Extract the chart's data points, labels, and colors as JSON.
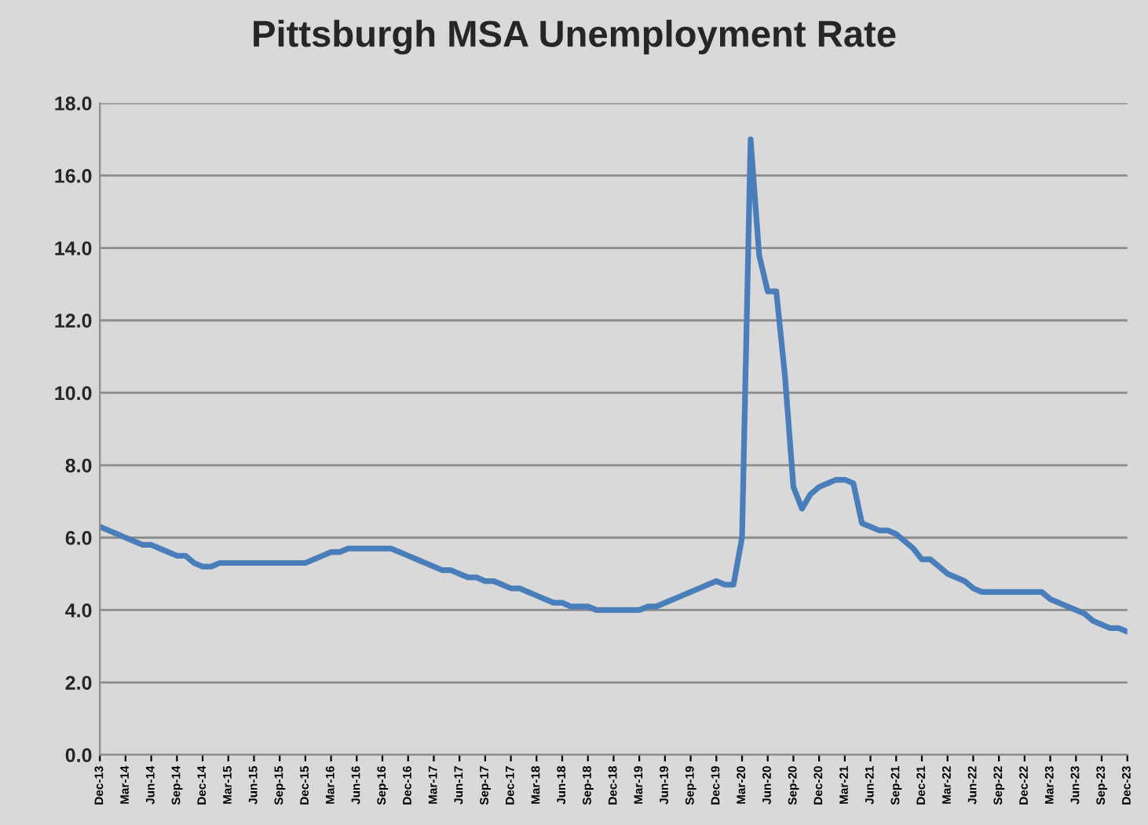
{
  "chart_data": {
    "type": "line",
    "title": "Pittsburgh MSA Unemployment Rate",
    "categories": [
      "Dec-13",
      null,
      null,
      "Mar-14",
      null,
      null,
      "Jun-14",
      null,
      null,
      "Sep-14",
      null,
      null,
      "Dec-14",
      null,
      null,
      "Mar-15",
      null,
      null,
      "Jun-15",
      null,
      null,
      "Sep-15",
      null,
      null,
      "Dec-15",
      null,
      null,
      "Mar-16",
      null,
      null,
      "Jun-16",
      null,
      null,
      "Sep-16",
      null,
      null,
      "Dec-16",
      null,
      null,
      "Mar-17",
      null,
      null,
      "Jun-17",
      null,
      null,
      "Sep-17",
      null,
      null,
      "Dec-17",
      null,
      null,
      "Mar-18",
      null,
      null,
      "Jun-18",
      null,
      null,
      "Sep-18",
      null,
      null,
      "Dec-18",
      null,
      null,
      "Mar-19",
      null,
      null,
      "Jun-19",
      null,
      null,
      "Sep-19",
      null,
      null,
      "Dec-19",
      null,
      null,
      "Mar-20",
      null,
      null,
      "Jun-20",
      null,
      null,
      "Sep-20",
      null,
      null,
      "Dec-20",
      null,
      null,
      "Mar-21",
      null,
      null,
      "Jun-21",
      null,
      null,
      "Sep-21",
      null,
      null,
      "Dec-21",
      null,
      null,
      "Mar-22",
      null,
      null,
      "Jun-22",
      null,
      null,
      "Sep-22",
      null,
      null,
      "Dec-22",
      null,
      null,
      "Mar-23",
      null,
      null,
      "Jun-23",
      null,
      null,
      "Sep-23",
      null,
      null,
      "Dec-23"
    ],
    "series": [
      {
        "color": "#4a7ebb",
        "values": [
          6.3,
          6.2,
          6.1,
          6.0,
          5.9,
          5.8,
          5.8,
          5.7,
          5.6,
          5.5,
          5.5,
          5.3,
          5.2,
          5.2,
          5.3,
          5.3,
          5.3,
          5.3,
          5.3,
          5.3,
          5.3,
          5.3,
          5.3,
          5.3,
          5.3,
          5.4,
          5.5,
          5.6,
          5.6,
          5.7,
          5.7,
          5.7,
          5.7,
          5.7,
          5.7,
          5.6,
          5.5,
          5.4,
          5.3,
          5.2,
          5.1,
          5.1,
          5.0,
          4.9,
          4.9,
          4.8,
          4.8,
          4.7,
          4.6,
          4.6,
          4.5,
          4.4,
          4.3,
          4.2,
          4.2,
          4.1,
          4.1,
          4.1,
          4.0,
          4.0,
          4.0,
          4.0,
          4.0,
          4.0,
          4.1,
          4.1,
          4.2,
          4.3,
          4.4,
          4.5,
          4.6,
          4.7,
          4.8,
          4.7,
          4.7,
          6.0,
          17.0,
          13.8,
          12.8,
          12.8,
          10.5,
          7.4,
          6.8,
          7.2,
          7.4,
          7.5,
          7.6,
          7.6,
          7.5,
          6.4,
          6.3,
          6.2,
          6.2,
          6.1,
          5.9,
          5.7,
          5.4,
          5.4,
          5.2,
          5.0,
          4.9,
          4.8,
          4.6,
          4.5,
          4.5,
          4.5,
          4.5,
          4.5,
          4.5,
          4.5,
          4.5,
          4.3,
          4.2,
          4.1,
          4.0,
          3.9,
          3.7,
          3.6,
          3.5,
          3.5,
          3.4
        ]
      }
    ],
    "ylim": [
      0,
      18
    ],
    "yticks": [
      {
        "value": 0,
        "label": "0.0"
      },
      {
        "value": 2,
        "label": "2.0"
      },
      {
        "value": 4,
        "label": "4.0"
      },
      {
        "value": 6,
        "label": "6.0"
      },
      {
        "value": 8,
        "label": "8.0"
      },
      {
        "value": 10,
        "label": "10.0"
      },
      {
        "value": 12,
        "label": "12.0"
      },
      {
        "value": 14,
        "label": "14.0"
      },
      {
        "value": 16,
        "label": "16.0"
      },
      {
        "value": 18,
        "label": "18.0"
      }
    ],
    "grid": "y",
    "marker": "none",
    "line_style": "solid"
  }
}
